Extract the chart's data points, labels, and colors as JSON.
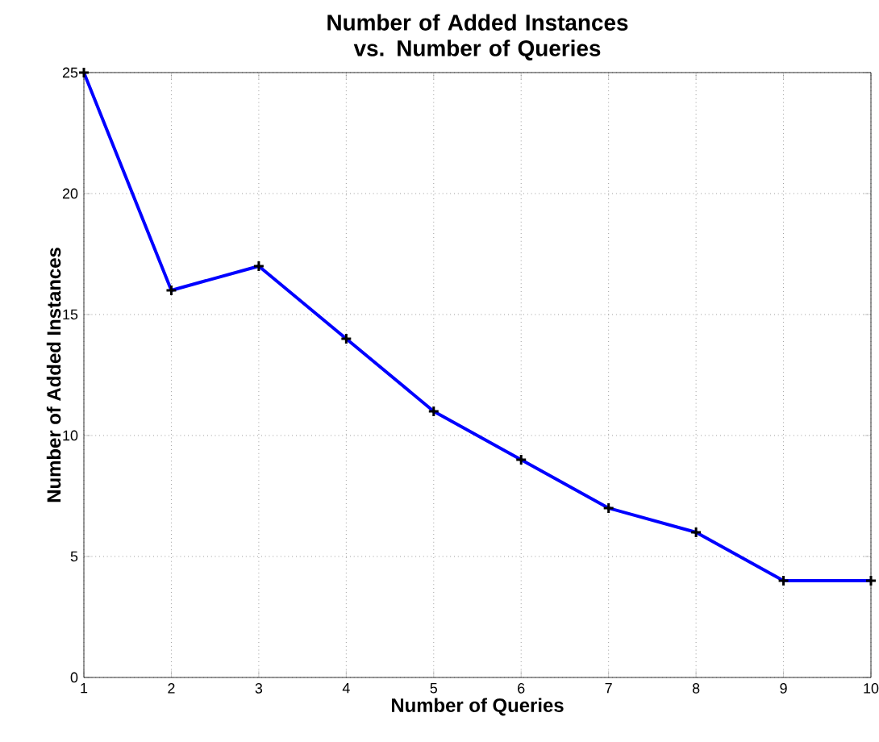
{
  "chart_data": {
    "type": "line",
    "title": "Number of Added Instances vs. Number of Queries",
    "xlabel": "Number of Queries",
    "ylabel": "Number of Added Instances",
    "x": [
      1,
      2,
      3,
      4,
      5,
      6,
      7,
      8,
      9,
      10
    ],
    "series": [
      {
        "color": "#0000ff",
        "values": [
          25,
          16,
          17,
          14,
          11,
          9,
          7,
          6,
          4,
          4
        ]
      }
    ],
    "xlim": [
      1,
      10
    ],
    "ylim": [
      0,
      25
    ],
    "xticks": [
      1,
      2,
      3,
      4,
      5,
      6,
      7,
      8,
      9,
      10
    ],
    "yticks": [
      0,
      5,
      10,
      15,
      20,
      25
    ],
    "grid": true,
    "marker": "cross",
    "line_style": "solid"
  }
}
